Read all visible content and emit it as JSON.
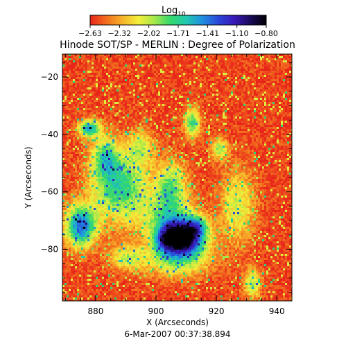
{
  "colorbar": {
    "label_main": "Log",
    "label_sub": "10",
    "tick_labels": [
      "-2.63",
      "-2.32",
      "-2.02",
      "-1.71",
      "-1.41",
      "-1.10",
      "-0.80"
    ],
    "colors": [
      "#e8251a",
      "#f26c1e",
      "#f7b22a",
      "#f4ee3a",
      "#a8e84a",
      "#35d86a",
      "#20c8b0",
      "#1f8fe0",
      "#2a48d8",
      "#3818b8",
      "#1a0a5a",
      "#000000"
    ]
  },
  "chart_data": {
    "type": "heatmap",
    "title": "Hinode SOT/SP - MERLIN : Degree of Polarization",
    "xlabel": "X (Arcseconds)",
    "ylabel": "Y (Arcseconds)",
    "xlim": [
      869,
      945
    ],
    "ylim": [
      -98,
      -12
    ],
    "xticks": [
      880,
      900,
      920,
      940
    ],
    "yticks": [
      -80,
      -60,
      -40,
      -20
    ],
    "value_range": [
      -2.63,
      -0.8
    ],
    "background_value": -2.55,
    "features": [
      {
        "x": 909,
        "y": -76,
        "sx": 4.8,
        "sy": 4.2,
        "amp": 1.75
      },
      {
        "x": 903,
        "y": -77,
        "sx": 2.5,
        "sy": 3.0,
        "amp": 0.6
      },
      {
        "x": 914,
        "y": -72,
        "sx": 2.5,
        "sy": 2.5,
        "amp": 0.5
      },
      {
        "x": 907,
        "y": -84,
        "sx": 8.0,
        "sy": 4.0,
        "amp": 0.55
      },
      {
        "x": 904,
        "y": -70,
        "sx": 6.5,
        "sy": 6.0,
        "amp": 0.6
      },
      {
        "x": 888,
        "y": -58,
        "sx": 6.5,
        "sy": 8.5,
        "amp": 0.85
      },
      {
        "x": 883,
        "y": -48,
        "sx": 3.0,
        "sy": 5.0,
        "amp": 0.65
      },
      {
        "x": 875,
        "y": -72,
        "sx": 3.5,
        "sy": 5.0,
        "amp": 1.2
      },
      {
        "x": 878,
        "y": -38,
        "sx": 2.5,
        "sy": 2.0,
        "amp": 1.0
      },
      {
        "x": 905,
        "y": -58,
        "sx": 3.5,
        "sy": 6.0,
        "amp": 0.65
      },
      {
        "x": 912,
        "y": -36,
        "sx": 1.8,
        "sy": 3.5,
        "amp": 0.8
      },
      {
        "x": 921,
        "y": -45,
        "sx": 2.0,
        "sy": 2.5,
        "amp": 0.6
      },
      {
        "x": 927,
        "y": -65,
        "sx": 4.0,
        "sy": 9.0,
        "amp": 0.5
      },
      {
        "x": 932,
        "y": -92,
        "sx": 2.0,
        "sy": 3.5,
        "amp": 0.6
      },
      {
        "x": 890,
        "y": -83,
        "sx": 4.0,
        "sy": 3.0,
        "amp": 0.5
      },
      {
        "x": 895,
        "y": -44,
        "sx": 3.0,
        "sy": 4.0,
        "amp": 0.45
      }
    ]
  },
  "timestamp": "6-Mar-2007 00:37:38.894"
}
